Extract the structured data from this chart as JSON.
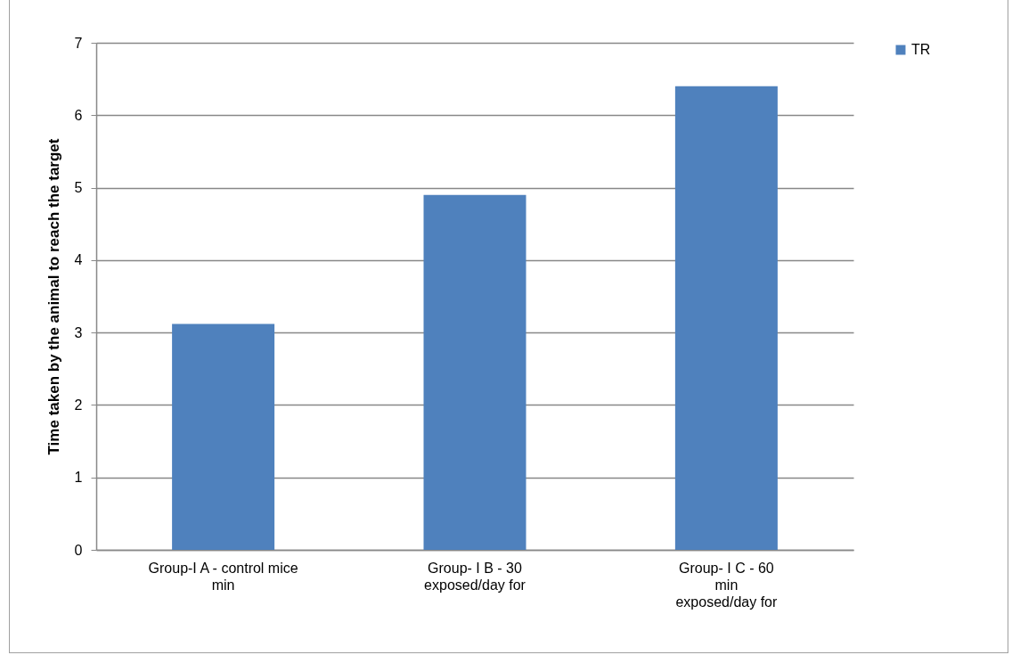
{
  "chart_data": {
    "type": "bar",
    "ylabel": "Time taken by the animal to reach the target",
    "categories": [
      "Group-I A - control mice\nmin",
      "Group- I B - 30\n\nexposed/day for",
      "Group- I C - 60\nmin\nexposed/day for"
    ],
    "series": [
      {
        "name": "TR",
        "color": "#4f81bd",
        "values": [
          3.12,
          4.9,
          6.4
        ]
      }
    ],
    "ylim": [
      0,
      7
    ],
    "yticks": [
      0,
      1,
      2,
      3,
      4,
      5,
      6,
      7
    ],
    "grid": "y",
    "legend": "right"
  }
}
